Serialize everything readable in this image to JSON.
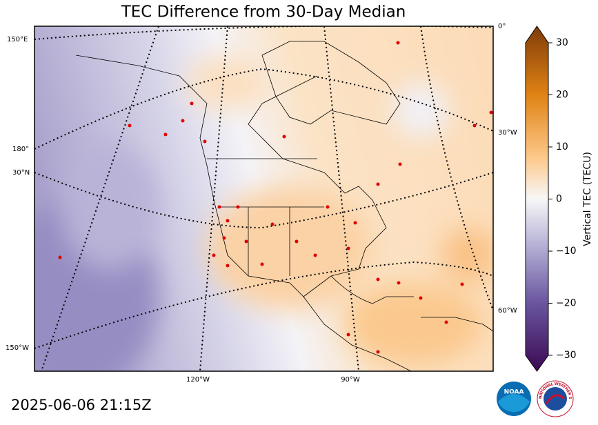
{
  "title": "TEC Difference from 30-Day Median",
  "timestamp": "2025-06-06 21:15Z",
  "map": {
    "graticule_labels": [
      "0°",
      "150°E",
      "30°W",
      "180°",
      "30°N",
      "60°W",
      "150°W",
      "120°W",
      "90°W"
    ]
  },
  "colorbar": {
    "label": "Vertical TEC (TECU)",
    "lim": [
      -30,
      30
    ],
    "ticks": [
      {
        "value": -30,
        "label": "−30"
      },
      {
        "value": -20,
        "label": "−20"
      },
      {
        "value": -10,
        "label": "−10"
      },
      0,
      10,
      20,
      30
    ]
  },
  "logos": {
    "noaa": "NOAA",
    "nws": "NATIONAL WEATHER SERVICE"
  }
}
